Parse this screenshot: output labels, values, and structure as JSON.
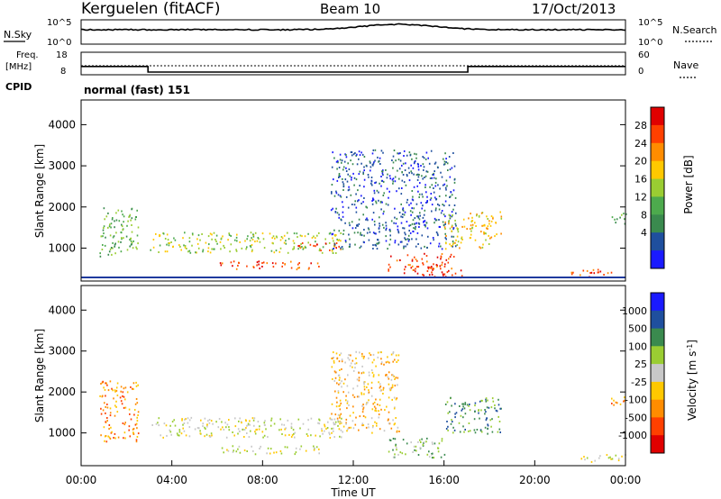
{
  "header": {
    "station": "Kerguelen (fitACF)",
    "beam": "Beam 10",
    "date": "17/Oct/2013"
  },
  "noise_panel": {
    "left_label": "N.Sky",
    "right_label": "N.Search",
    "left_ticks": [
      "10^5",
      "10^0"
    ],
    "right_ticks": [
      "10^5",
      "10^0"
    ]
  },
  "freq_panel": {
    "left_label_line1": "Freq.",
    "left_label_line2": "[MHz]",
    "left_ticks": [
      "18",
      "8"
    ],
    "right_ticks": [
      "60",
      "0"
    ],
    "right_label": "Nave",
    "freq_mhz": {
      "t": [
        0,
        2.95,
        2.95,
        17.05,
        17.05,
        24
      ],
      "v": [
        11.7,
        11.7,
        9.2,
        9.2,
        11.7,
        11.7
      ]
    },
    "nave_level": 24
  },
  "cpid": {
    "label": "CPID",
    "value": "normal (fast) 151"
  },
  "time_axis": {
    "label": "Time UT",
    "ticks": [
      "00:00",
      "04:00",
      "08:00",
      "12:00",
      "16:00",
      "20:00",
      "00:00"
    ]
  },
  "colors": {
    "power": [
      "#1a1aff",
      "#1f4f9e",
      "#3a8a4e",
      "#4daa4d",
      "#9acd32",
      "#ffc800",
      "#ff8c00",
      "#ff4000",
      "#e00000"
    ],
    "velocity": [
      "#e00000",
      "#ff4000",
      "#ff8c00",
      "#ffc800",
      "#c8c8c8",
      "#9acd32",
      "#3a8a4e",
      "#1f4f9e",
      "#1a1aff"
    ]
  },
  "chart_data": [
    {
      "type": "heatmap",
      "name": "power",
      "ylabel": "Slant Range [km]",
      "ylim": [
        200,
        4600
      ],
      "yticks": [
        "1000",
        "2000",
        "3000",
        "4000"
      ],
      "xlim": [
        0,
        24
      ],
      "colorbar_label": "Power [dB]",
      "colorbar_ticks": [
        "4",
        "8",
        "12",
        "16",
        "20",
        "24",
        "28"
      ],
      "regions": [
        {
          "t0": 0.8,
          "t1": 2.5,
          "r0": 800,
          "r1": 2000,
          "level": 3
        },
        {
          "t0": 3.0,
          "t1": 11.5,
          "r0": 900,
          "r1": 1400,
          "level": 4
        },
        {
          "t0": 6.0,
          "t1": 10.5,
          "r0": 500,
          "r1": 700,
          "level": 7
        },
        {
          "t0": 9.5,
          "t1": 11.5,
          "r0": 950,
          "r1": 1150,
          "level": 7
        },
        {
          "t0": 11.0,
          "t1": 16.5,
          "r0": 1000,
          "r1": 3400,
          "level": 1
        },
        {
          "t0": 13.5,
          "t1": 16.5,
          "r0": 400,
          "r1": 900,
          "level": 7
        },
        {
          "t0": 15.0,
          "t1": 17.0,
          "r0": 300,
          "r1": 500,
          "level": 8
        },
        {
          "t0": 16.0,
          "t1": 18.5,
          "r0": 1000,
          "r1": 1900,
          "level": 5
        },
        {
          "t0": 21.5,
          "t1": 23.5,
          "r0": 300,
          "r1": 500,
          "level": 7
        },
        {
          "t0": 23.3,
          "t1": 24.0,
          "r0": 1600,
          "r1": 1900,
          "level": 3
        }
      ]
    },
    {
      "type": "heatmap",
      "name": "velocity",
      "ylabel": "Slant Range [km]",
      "ylim": [
        200,
        4600
      ],
      "yticks": [
        "1000",
        "2000",
        "3000",
        "4000"
      ],
      "xlim": [
        0,
        24
      ],
      "colorbar_label": "Velocity [m s",
      "colorbar_label_exp": "-1",
      "colorbar_label_end": "]",
      "colorbar_ticks": [
        "1000",
        "500",
        "100",
        "25",
        "-25",
        "-100",
        "-500",
        "-1000"
      ],
      "regions": [
        {
          "t0": 0.8,
          "t1": 2.5,
          "r0": 800,
          "r1": 2300,
          "level": 2
        },
        {
          "t0": 3.0,
          "t1": 11.5,
          "r0": 900,
          "r1": 1400,
          "level": 4
        },
        {
          "t0": 6.0,
          "t1": 10.5,
          "r0": 500,
          "r1": 700,
          "level": 4
        },
        {
          "t0": 11.0,
          "t1": 14.0,
          "r0": 1000,
          "r1": 3000,
          "level": 3
        },
        {
          "t0": 13.5,
          "t1": 16.0,
          "r0": 400,
          "r1": 900,
          "level": 5
        },
        {
          "t0": 16.0,
          "t1": 18.5,
          "r0": 1000,
          "r1": 1900,
          "level": 6
        },
        {
          "t0": 22.0,
          "t1": 24.0,
          "r0": 300,
          "r1": 500,
          "level": 4
        },
        {
          "t0": 23.3,
          "t1": 24.0,
          "r0": 1600,
          "r1": 1900,
          "level": 2
        }
      ]
    }
  ]
}
